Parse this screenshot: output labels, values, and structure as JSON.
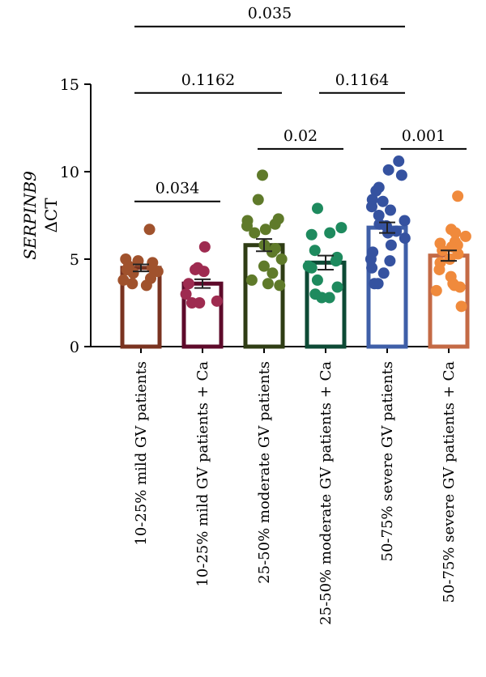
{
  "chart_data": {
    "type": "bar",
    "ylabel_line1": "SERPINB9",
    "ylabel_line2": "ΔCT",
    "ylim": [
      0,
      15
    ],
    "yticks": [
      {
        "value": 0,
        "label": "0"
      },
      {
        "value": 5,
        "label": "5"
      },
      {
        "value": 10,
        "label": "10"
      },
      {
        "value": 15,
        "label": "15"
      }
    ],
    "grid": false,
    "legend": "none",
    "categories": [
      "10-25% mild GV patients",
      "10-25% mild GV patients + Ca",
      "25-50% moderate GV patients",
      "25-50% moderate GV patients + Ca",
      "50-75% severe GV patients",
      "50-75% severe GV patients + Ca"
    ],
    "series": [
      {
        "mean": 4.5,
        "sem": 0.2,
        "stroke": "#7a3320",
        "point_color": "#a0522d",
        "points": [
          6.7,
          5.0,
          4.9,
          4.8,
          4.6,
          4.5,
          4.4,
          4.3,
          4.2,
          3.9,
          3.8,
          3.6,
          3.5
        ]
      },
      {
        "mean": 3.6,
        "sem": 0.25,
        "stroke": "#5e0a2a",
        "point_color": "#9e2b50",
        "points": [
          5.7,
          4.5,
          4.4,
          4.3,
          3.6,
          3.0,
          2.6,
          2.5,
          2.5
        ]
      },
      {
        "mean": 5.8,
        "sem": 0.35,
        "stroke": "#2f3d14",
        "point_color": "#5f7a2a",
        "points": [
          9.8,
          8.4,
          7.3,
          7.2,
          7.0,
          6.9,
          6.7,
          6.5,
          5.8,
          5.6,
          5.4,
          5.0,
          4.6,
          4.2,
          3.8,
          3.6,
          3.5
        ]
      },
      {
        "mean": 4.8,
        "sem": 0.4,
        "stroke": "#0d4a35",
        "point_color": "#1e8a5e",
        "points": [
          7.9,
          6.8,
          6.5,
          6.4,
          5.5,
          5.1,
          4.9,
          4.6,
          4.5,
          3.8,
          3.4,
          3.0,
          2.8,
          2.8
        ]
      },
      {
        "mean": 6.8,
        "sem": 0.3,
        "stroke": "#3f5fa8",
        "point_color": "#3552a0",
        "points": [
          10.6,
          10.1,
          9.8,
          9.1,
          8.9,
          8.4,
          8.3,
          8.0,
          7.8,
          7.5,
          7.2,
          7.0,
          6.9,
          6.9,
          6.6,
          6.5,
          6.2,
          5.8,
          5.4,
          5.0,
          4.9,
          4.5,
          4.2,
          3.6,
          3.6
        ]
      },
      {
        "mean": 5.2,
        "sem": 0.3,
        "stroke": "#c46a45",
        "point_color": "#f08a3c",
        "points": [
          8.6,
          6.7,
          6.5,
          6.3,
          6.0,
          5.9,
          5.8,
          5.7,
          5.5,
          5.3,
          5.0,
          4.8,
          4.4,
          4.0,
          3.6,
          3.5,
          3.4,
          3.2,
          2.3
        ]
      }
    ],
    "comparisons": [
      {
        "from": 0,
        "to": 1,
        "y": 8.3,
        "label": "0.034"
      },
      {
        "from": 2,
        "to": 3,
        "y": 11.3,
        "label": "0.02"
      },
      {
        "from": 4,
        "to": 5,
        "y": 11.3,
        "label": "0.001"
      },
      {
        "from": 0,
        "to": 2,
        "y": 14.5,
        "label": "0.1162"
      },
      {
        "from": 3,
        "to": 4,
        "y": 14.5,
        "label": "0.1164"
      },
      {
        "from": 0,
        "to": 4,
        "y": 18.3,
        "label": "0.035"
      }
    ]
  }
}
